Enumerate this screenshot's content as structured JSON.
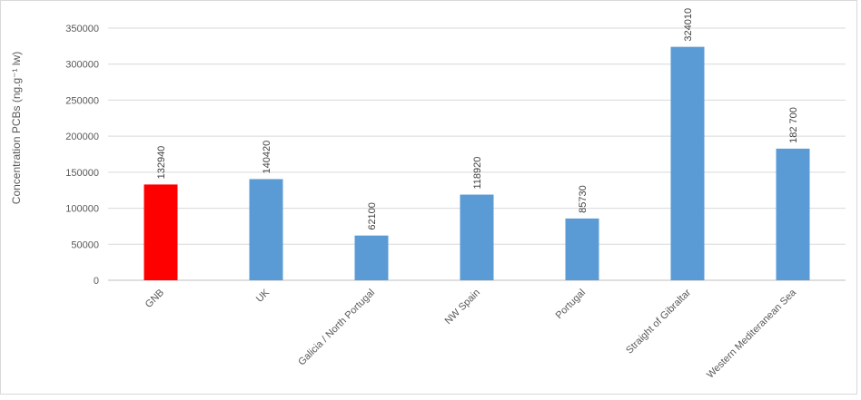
{
  "chart_data": {
    "type": "bar",
    "title": "",
    "xlabel": "",
    "ylabel": "Concentration PCBs (ng.g⁻¹ lw)",
    "categories": [
      "GNB",
      "UK",
      "Galicia / North Portugal",
      "NW Spain",
      "Portugal",
      "Straight of Gibraltar",
      "Western Mediteranean Sea"
    ],
    "values": [
      132940,
      140420,
      62100,
      118920,
      85730,
      324010,
      182700
    ],
    "data_labels": [
      "132940",
      "140420",
      "62100",
      "118920",
      "85730",
      "324010",
      "182 700"
    ],
    "bar_colors": [
      "#ff0000",
      "#5b9bd5",
      "#5b9bd5",
      "#5b9bd5",
      "#5b9bd5",
      "#5b9bd5",
      "#5b9bd5"
    ],
    "ylim": [
      0,
      350000
    ],
    "yticks": [
      "0",
      "50000",
      "100000",
      "150000",
      "200000",
      "250000",
      "300000",
      "350000"
    ],
    "grid": true,
    "legend": "none"
  }
}
